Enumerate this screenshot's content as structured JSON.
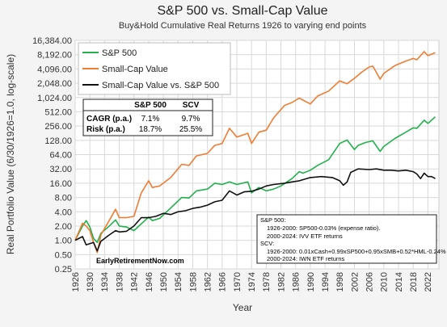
{
  "chart_data": {
    "type": "line",
    "title": "S&P 500 vs. Small-Cap Value",
    "subtitle": "Buy&Hold Cumulative Real Returns 1926 to varying end points",
    "xlabel": "Year",
    "ylabel": "Real Portfolio Value (6/30/1926=1.0, log-scale)",
    "y_scale": "log2",
    "xlim": [
      1926,
      2025
    ],
    "ylim": [
      0.25,
      16384
    ],
    "x_tick_labels": [
      "1926",
      "1930",
      "1934",
      "1938",
      "1942",
      "1946",
      "1950",
      "1954",
      "1958",
      "1962",
      "1966",
      "1970",
      "1974",
      "1978",
      "1982",
      "1986",
      "1990",
      "1994",
      "1998",
      "2002",
      "2006",
      "2010",
      "2014",
      "2018",
      "2022"
    ],
    "y_tick_labels": [
      "0.25",
      "0.50",
      "1.00",
      "2.00",
      "4.00",
      "8.00",
      "16.00",
      "32.00",
      "64.00",
      "128.00",
      "256.00",
      "512.00",
      "1,024.00",
      "2,048.00",
      "4,096.00",
      "8,192.00",
      "16,384.00"
    ],
    "grid": true,
    "legend_position": "top-left",
    "series": [
      {
        "name": "S&P 500",
        "color": "#22b14c",
        "x": [
          1926,
          1928,
          1929,
          1930,
          1931,
          1932,
          1933,
          1935,
          1937,
          1938,
          1940,
          1942,
          1946,
          1947,
          1949,
          1952,
          1955,
          1957,
          1959,
          1962,
          1964,
          1966,
          1968,
          1970,
          1973,
          1974,
          1976,
          1978,
          1980,
          1982,
          1985,
          1987,
          1988,
          1990,
          1992,
          1995,
          1998,
          2000,
          2002,
          2003,
          2005,
          2007,
          2009,
          2010,
          2013,
          2016,
          2018,
          2019,
          2021,
          2022,
          2024
        ],
        "y": [
          1.0,
          2.0,
          2.6,
          1.9,
          1.1,
          0.9,
          1.4,
          1.9,
          2.7,
          2.0,
          1.9,
          1.6,
          3.1,
          2.6,
          2.9,
          4.8,
          8.0,
          7.8,
          11.0,
          12.0,
          16.0,
          15.0,
          17.0,
          15.0,
          17.0,
          10.0,
          13.0,
          11.0,
          12.0,
          14.0,
          20.0,
          28.0,
          26.0,
          30.0,
          38.0,
          50.0,
          110.0,
          130.0,
          82.0,
          100.0,
          115.0,
          125.0,
          75.0,
          95.0,
          140.0,
          190.0,
          235.0,
          230.0,
          340.0,
          290.0,
          400.0
        ]
      },
      {
        "name": "Small-Cap Value",
        "color": "#f07c33",
        "x": [
          1926,
          1928,
          1929,
          1930,
          1931,
          1932,
          1933,
          1935,
          1937,
          1938,
          1940,
          1942,
          1944,
          1946,
          1947,
          1949,
          1952,
          1955,
          1957,
          1959,
          1962,
          1964,
          1966,
          1968,
          1970,
          1973,
          1974,
          1976,
          1978,
          1980,
          1983,
          1985,
          1987,
          1988,
          1990,
          1992,
          1995,
          1998,
          2000,
          2002,
          2004,
          2006,
          2007,
          2009,
          2010,
          2013,
          2016,
          2018,
          2019,
          2021,
          2022,
          2024
        ],
        "y": [
          1.0,
          2.3,
          2.0,
          1.6,
          0.9,
          0.55,
          1.3,
          2.4,
          4.5,
          3.0,
          3.0,
          3.2,
          10.0,
          18.0,
          13.0,
          14.0,
          21.0,
          40.0,
          38.0,
          60.0,
          68.0,
          100.0,
          110.0,
          230.0,
          150.0,
          180.0,
          110.0,
          190.0,
          210.0,
          380.0,
          700.0,
          800.0,
          1000.0,
          900.0,
          750.0,
          1100.0,
          1400.0,
          2300.0,
          2000.0,
          2600.0,
          3500.0,
          4500.0,
          4700.0,
          2500.0,
          3300.0,
          4800.0,
          6000.0,
          6800.0,
          6400.0,
          9500.0,
          7800.0,
          9000.0
        ]
      },
      {
        "name": "Small-Cap Value vs. S&P 500",
        "color": "#111111",
        "x": [
          1926,
          1928,
          1929,
          1930,
          1931,
          1932,
          1933,
          1935,
          1937,
          1938,
          1940,
          1942,
          1944,
          1946,
          1948,
          1950,
          1952,
          1954,
          1956,
          1958,
          1960,
          1962,
          1964,
          1966,
          1968,
          1970,
          1972,
          1974,
          1976,
          1978,
          1980,
          1983,
          1985,
          1987,
          1990,
          1993,
          1996,
          1998,
          1999,
          2000,
          2001,
          2003,
          2006,
          2008,
          2010,
          2012,
          2014,
          2016,
          2018,
          2019,
          2020,
          2021,
          2022,
          2023,
          2024
        ],
        "y": [
          1.0,
          1.2,
          0.8,
          0.85,
          0.9,
          0.6,
          0.95,
          1.25,
          1.6,
          1.5,
          1.55,
          2.0,
          3.0,
          3.0,
          3.2,
          3.7,
          3.5,
          4.0,
          4.2,
          4.7,
          5.0,
          5.5,
          6.5,
          7.0,
          11.0,
          9.0,
          10.5,
          10.8,
          12.0,
          14.0,
          15.0,
          16.0,
          17.0,
          18.0,
          21.0,
          22.0,
          21.0,
          18.0,
          14.5,
          17.0,
          27.0,
          32.0,
          31.0,
          32.0,
          30.0,
          30.0,
          29.0,
          30.0,
          28.0,
          25.0,
          20.0,
          26.0,
          22.0,
          22.0,
          20.0
        ]
      }
    ],
    "stats_table": {
      "headers": [
        "",
        "S&P 500",
        "SCV"
      ],
      "rows": [
        [
          "CAGR (p.a.)",
          "7.1%",
          "9.7%"
        ],
        [
          "Risk (p.a.)",
          "18.7%",
          "25.5%"
        ]
      ]
    },
    "annotations": {
      "credit": "EarlyRetirementNow.com",
      "notes": [
        "S&P 500:",
        "1926-2000: SP500-0.03% (expense ratio).",
        "2000-2024: IVV ETF returns",
        "SCV:",
        "1926-2000: 0.01xCash+0.99xSP500+0.95xSMB+0.52*HML-0.24%",
        "2000-2024: IWN ETF returns"
      ]
    }
  }
}
